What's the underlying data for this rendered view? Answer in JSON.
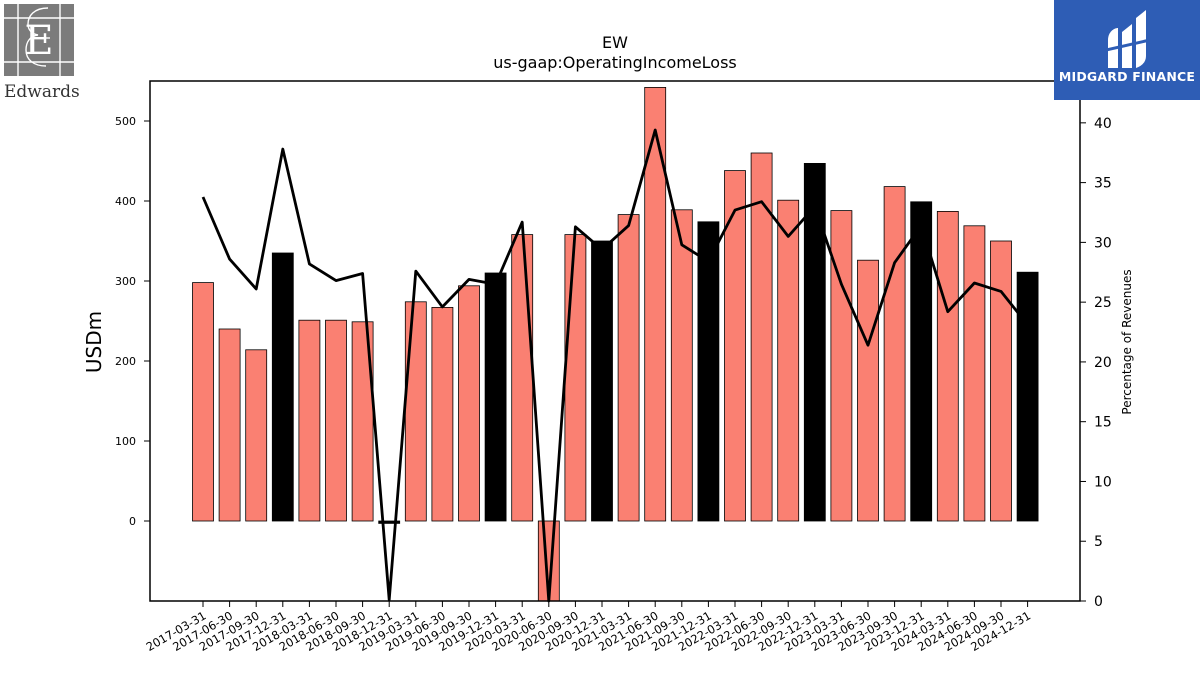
{
  "logos": {
    "left_text": "Edwards",
    "right_text": "MIDGARD FINANCE"
  },
  "colors": {
    "bar_default": "#fa8072",
    "bar_q4": "#000000",
    "line": "#000000",
    "logo_right_bg": "#2e5db5"
  },
  "chart_data": {
    "type": "bar",
    "title": "EW",
    "subtitle": "us-gaap:OperatingIncomeLoss",
    "ylabel": "USDm",
    "y2label": "Percentage of Revenues",
    "ylim": [
      -100,
      550
    ],
    "y2lim": [
      0,
      43.5
    ],
    "yticks": [
      0,
      100,
      200,
      300,
      400,
      500
    ],
    "y2ticks": [
      0,
      5,
      10,
      15,
      20,
      25,
      30,
      35,
      40
    ],
    "grid": false,
    "categories": [
      "2017-03-31",
      "2017-06-30",
      "2017-09-30",
      "2017-12-31",
      "2018-03-31",
      "2018-06-30",
      "2018-09-30",
      "2018-12-31",
      "2019-03-31",
      "2019-06-30",
      "2019-09-30",
      "2019-12-31",
      "2020-03-31",
      "2020-06-30",
      "2020-09-30",
      "2020-12-31",
      "2021-03-31",
      "2021-06-30",
      "2021-09-30",
      "2021-12-31",
      "2022-03-31",
      "2022-06-30",
      "2022-09-30",
      "2022-12-31",
      "2023-03-31",
      "2023-06-30",
      "2023-09-30",
      "2023-12-31",
      "2024-03-31",
      "2024-06-30",
      "2024-09-30",
      "2024-12-31"
    ],
    "series": [
      {
        "type": "bar",
        "axis": "left",
        "values": [
          298,
          240,
          214,
          335,
          251,
          251,
          249,
          -3,
          274,
          267,
          294,
          310,
          358,
          -103,
          358,
          350,
          383,
          542,
          389,
          374,
          438,
          460,
          401,
          447,
          388,
          326,
          418,
          399,
          387,
          369,
          350,
          311
        ]
      },
      {
        "type": "line",
        "axis": "right",
        "values": [
          33.8,
          28.6,
          26.1,
          37.8,
          28.2,
          26.8,
          27.4,
          0.1,
          27.6,
          24.6,
          26.9,
          26.5,
          31.7,
          -1.0,
          31.3,
          29.4,
          31.4,
          39.4,
          29.8,
          28.4,
          32.7,
          33.4,
          30.5,
          33.0,
          26.5,
          21.4,
          28.3,
          31.4,
          24.2,
          26.6,
          25.9,
          23.1
        ]
      }
    ]
  }
}
